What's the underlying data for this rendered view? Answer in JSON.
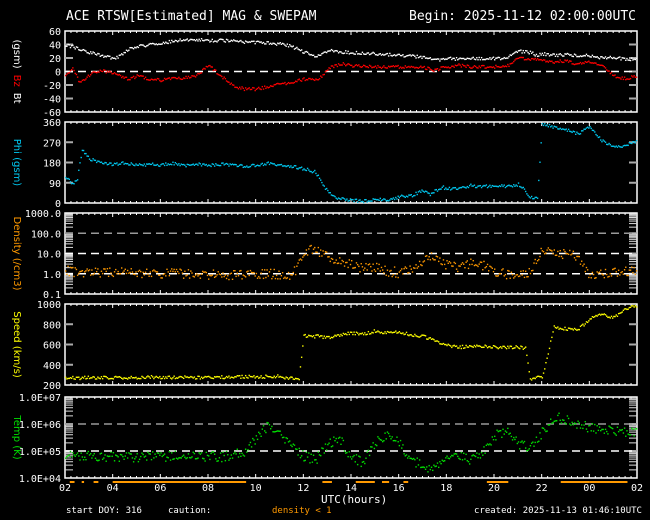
{
  "header": {
    "title": "ACE RTSW[Estimated] MAG & SWEPAM",
    "begin": "Begin: 2025-11-12 02:00:00UTC"
  },
  "footer": {
    "start_doy": "start DOY: 316",
    "caution": "caution:",
    "density_note": "density < 1",
    "created": "created: 2025-11-13 01:46:10UTC"
  },
  "colors": {
    "bt": "#ffffff",
    "bz": "#ff0000",
    "phi": "#00c8f0",
    "density": "#ff9900",
    "speed": "#ffff00",
    "temp": "#00e000",
    "frame": "#ffffff",
    "grid_dash": "#b4b4b4"
  },
  "chart_data": {
    "type": "scatter",
    "title": "ACE RTSW[Estimated] MAG & SWEPAM",
    "xlabel": "UTC(hours)",
    "x_ticks": [
      "02",
      "04",
      "06",
      "08",
      "10",
      "12",
      "14",
      "16",
      "18",
      "20",
      "22",
      "00",
      "02"
    ],
    "x_range_hours": [
      0,
      24
    ],
    "panels": [
      {
        "id": "mag",
        "ylabel": "Bt Bz (gsm)",
        "ylabel_parts": [
          {
            "text": "Bt",
            "color": "#ffffff"
          },
          {
            "text": "Bz",
            "color": "#ff0000"
          },
          {
            "text": "(gsm)",
            "color": "#ffffff"
          }
        ],
        "yscale": "linear",
        "ylim": [
          -60,
          60
        ],
        "yticks": [
          "60",
          "40",
          "20",
          "0",
          "-20",
          "-40",
          "-60"
        ],
        "ytick_values": [
          60,
          40,
          20,
          0,
          -20,
          -40,
          -60
        ],
        "dashed_lines": [
          0
        ],
        "series": [
          {
            "name": "Bt",
            "color": "#ffffff",
            "x": [
              0,
              0.3,
              0.6,
              0.9,
              1.2,
              1.5,
              1.8,
              2.1,
              2.4,
              2.7,
              3.0,
              3.5,
              4.0,
              4.5,
              5.0,
              5.5,
              6.0,
              6.5,
              7.0,
              7.5,
              8.0,
              8.5,
              9.0,
              9.5,
              10.0,
              10.5,
              10.8,
              11.0,
              11.3,
              11.6,
              12.0,
              12.5,
              13.0,
              13.5,
              14.0,
              14.5,
              15.0,
              15.5,
              16.0,
              16.5,
              17.0,
              17.5,
              18.0,
              18.5,
              19.0,
              19.5,
              19.8,
              20.0,
              20.5,
              21.0,
              21.5,
              22.0,
              22.5,
              23.0,
              23.5,
              24.0
            ],
            "y": [
              40,
              38,
              34,
              30,
              28,
              25,
              22,
              20,
              28,
              35,
              38,
              40,
              42,
              46,
              48,
              48,
              47,
              47,
              46,
              45,
              44,
              43,
              42,
              38,
              30,
              22,
              28,
              32,
              31,
              30,
              29,
              28,
              27,
              26,
              25,
              24,
              22,
              18,
              20,
              20,
              20,
              20,
              20,
              21,
              31,
              29,
              25,
              27,
              25,
              26,
              25,
              24,
              21,
              22,
              19,
              19
            ]
          },
          {
            "name": "Bz",
            "color": "#ff0000",
            "x": [
              0,
              0.3,
              0.6,
              0.9,
              1.2,
              1.5,
              1.8,
              2.1,
              2.4,
              2.7,
              3.0,
              3.5,
              4.0,
              4.5,
              5.0,
              5.5,
              6.0,
              6.5,
              7.0,
              7.5,
              8.0,
              8.5,
              9.0,
              9.5,
              10.0,
              10.5,
              10.8,
              11.0,
              11.3,
              11.6,
              12.0,
              12.5,
              13.0,
              13.5,
              14.0,
              14.5,
              15.0,
              15.5,
              16.0,
              16.5,
              17.0,
              17.5,
              18.0,
              18.5,
              19.0,
              19.5,
              19.8,
              20.0,
              20.5,
              21.0,
              21.5,
              22.0,
              22.5,
              23.0,
              23.5,
              24.0
            ],
            "y": [
              -5,
              5,
              -15,
              -8,
              0,
              2,
              0,
              -3,
              -8,
              -10,
              -6,
              -10,
              -12,
              -10,
              -8,
              -5,
              10,
              -5,
              -20,
              -25,
              -25,
              -22,
              -18,
              -15,
              -10,
              -12,
              -5,
              5,
              10,
              12,
              10,
              8,
              8,
              7,
              8,
              7,
              7,
              3,
              8,
              10,
              8,
              8,
              8,
              8,
              22,
              18,
              20,
              17,
              15,
              17,
              12,
              15,
              10,
              -5,
              -10,
              -5
            ]
          }
        ]
      },
      {
        "id": "phi",
        "ylabel": "Phi (gsm)",
        "ylabel_color": "#00c8f0",
        "yscale": "linear",
        "ylim": [
          0,
          360
        ],
        "yticks": [
          "360",
          "270",
          "180",
          "90",
          "0"
        ],
        "ytick_values": [
          360,
          270,
          180,
          90,
          0
        ],
        "dashed_lines": [],
        "series": [
          {
            "name": "Phi",
            "color": "#00c8f0",
            "x": [
              0,
              0.3,
              0.5,
              0.7,
              1.0,
              1.3,
              1.6,
              2.0,
              2.5,
              3.0,
              3.5,
              4.0,
              4.5,
              5.0,
              5.5,
              6.0,
              6.5,
              7.0,
              7.5,
              8.0,
              8.5,
              9.0,
              9.5,
              10.0,
              10.5,
              10.8,
              11.0,
              11.3,
              11.6,
              12.0,
              12.5,
              13.0,
              13.5,
              14.0,
              14.5,
              15.0,
              15.3,
              15.5,
              15.8,
              16.0,
              16.5,
              17.0,
              17.5,
              18.0,
              18.5,
              19.0,
              19.2,
              19.5,
              19.8,
              20.0,
              20.5,
              21.0,
              21.5,
              22.0,
              22.5,
              23.0,
              23.5,
              24.0
            ],
            "y": [
              120,
              90,
              110,
              240,
              200,
              190,
              180,
              175,
              180,
              170,
              175,
              172,
              180,
              170,
              178,
              170,
              175,
              172,
              165,
              170,
              180,
              172,
              165,
              155,
              140,
              80,
              60,
              30,
              20,
              15,
              10,
              20,
              15,
              30,
              35,
              60,
              40,
              55,
              75,
              65,
              70,
              80,
              75,
              80,
              78,
              85,
              70,
              30,
              20,
              355,
              340,
              330,
              310,
              340,
              280,
              250,
              260,
              280
            ]
          }
        ]
      },
      {
        "id": "density",
        "ylabel": "Density (/cm3)",
        "ylabel_color": "#ff9900",
        "yscale": "log",
        "ylim": [
          0.1,
          1000
        ],
        "yticks": [
          "1000.0",
          "100.0",
          "10.0",
          "1.0",
          "0.1"
        ],
        "ytick_values": [
          1000,
          100,
          10,
          1,
          0.1
        ],
        "dashed_lines": [
          100,
          10,
          1
        ],
        "series": [
          {
            "name": "Density",
            "color": "#ff9900",
            "x": [
              0,
              0.5,
              1.0,
              1.5,
              2.0,
              2.5,
              3.0,
              3.5,
              4.0,
              4.5,
              5.0,
              5.5,
              6.0,
              6.5,
              7.0,
              7.5,
              8.0,
              8.5,
              9.0,
              9.5,
              10.0,
              10.3,
              10.6,
              11.0,
              11.5,
              12.0,
              12.5,
              13.0,
              13.5,
              14.0,
              14.5,
              15.0,
              15.5,
              16.0,
              16.5,
              17.0,
              17.5,
              18.0,
              18.5,
              19.0,
              19.5,
              20.0,
              20.5,
              21.0,
              21.5,
              22.0,
              22.5,
              23.0,
              23.5,
              24.0
            ],
            "y": [
              1.5,
              1.3,
              1.4,
              1.2,
              1.3,
              1.2,
              1.1,
              1.2,
              1.0,
              1.1,
              1.0,
              1.2,
              1.0,
              0.9,
              1.0,
              1.0,
              1.0,
              1.1,
              1.0,
              0.8,
              10,
              20,
              15,
              8,
              5,
              3,
              2,
              2.5,
              1.5,
              1.2,
              2,
              5,
              8,
              3,
              2,
              4,
              3,
              1.5,
              1.0,
              1.0,
              1.2,
              15,
              12,
              10,
              8,
              1.0,
              1.0,
              1.2,
              1.5,
              1.8
            ]
          }
        ]
      },
      {
        "id": "speed",
        "ylabel": "Speed (km/s)",
        "ylabel_color": "#ffff00",
        "yscale": "linear",
        "ylim": [
          200,
          1000
        ],
        "yticks": [
          "1000",
          "800",
          "600",
          "400",
          "200"
        ],
        "ytick_values": [
          1000,
          800,
          600,
          400,
          200
        ],
        "dashed_lines": [],
        "series": [
          {
            "name": "Speed",
            "color": "#ffff00",
            "x": [
              0,
              0.5,
              1.0,
              1.5,
              2.0,
              2.5,
              3.0,
              3.5,
              4.0,
              4.5,
              5.0,
              5.5,
              6.0,
              6.5,
              7.0,
              7.5,
              8.0,
              8.5,
              9.0,
              9.3,
              9.5,
              9.8,
              10.0,
              10.3,
              10.6,
              11.0,
              11.5,
              12.0,
              12.5,
              13.0,
              13.5,
              14.0,
              14.5,
              15.0,
              15.5,
              16.0,
              16.5,
              17.0,
              17.5,
              18.0,
              18.5,
              19.0,
              19.3,
              19.5,
              19.8,
              20.0,
              20.5,
              21.0,
              21.5,
              22.0,
              22.5,
              23.0,
              23.5,
              24.0
            ],
            "y": [
              280,
              275,
              280,
              278,
              282,
              280,
              278,
              285,
              282,
              280,
              285,
              280,
              282,
              285,
              280,
              290,
              285,
              290,
              295,
              270,
              275,
              270,
              700,
              680,
              690,
              670,
              700,
              720,
              710,
              740,
              720,
              730,
              700,
              690,
              640,
              600,
              580,
              590,
              590,
              580,
              575,
              580,
              570,
              270,
              280,
              275,
              780,
              760,
              750,
              860,
              900,
              870,
              960,
              990
            ]
          }
        ]
      },
      {
        "id": "temp",
        "ylabel": "Temp (K)",
        "ylabel_color": "#00e000",
        "yscale": "log",
        "ylim": [
          10000,
          10000000
        ],
        "yticks": [
          "1.0E+07",
          "1.0E+06",
          "1.0E+05",
          "1.0E+04"
        ],
        "ytick_values": [
          10000000,
          1000000,
          100000,
          10000
        ],
        "dashed_lines": [
          1000000,
          100000
        ],
        "series": [
          {
            "name": "Temp",
            "color": "#00e000",
            "x": [
              0,
              0.5,
              1.0,
              1.5,
              2.0,
              2.5,
              3.0,
              3.5,
              4.0,
              4.5,
              5.0,
              5.5,
              6.0,
              6.5,
              7.0,
              7.5,
              8.0,
              8.5,
              9.0,
              9.5,
              10.0,
              10.5,
              11.0,
              11.5,
              12.0,
              12.5,
              13.0,
              13.5,
              14.0,
              14.5,
              15.0,
              15.5,
              16.0,
              16.5,
              17.0,
              17.5,
              18.0,
              18.5,
              19.0,
              19.5,
              20.0,
              20.5,
              21.0,
              21.5,
              22.0,
              22.5,
              23.0,
              23.5,
              24.0
            ],
            "y": [
              70000,
              75000,
              70000,
              60000,
              70000,
              65000,
              60000,
              70000,
              65000,
              70000,
              60000,
              65000,
              70000,
              60000,
              80000,
              100000,
              300000,
              1000000,
              400000,
              150000,
              70000,
              50000,
              200000,
              300000,
              60000,
              40000,
              200000,
              500000,
              200000,
              50000,
              30000,
              20000,
              60000,
              70000,
              50000,
              100000,
              400000,
              600000,
              200000,
              150000,
              500000,
              2000000,
              1500000,
              1000000,
              800000,
              700000,
              600000,
              500000,
              500000
            ]
          }
        ]
      }
    ]
  }
}
